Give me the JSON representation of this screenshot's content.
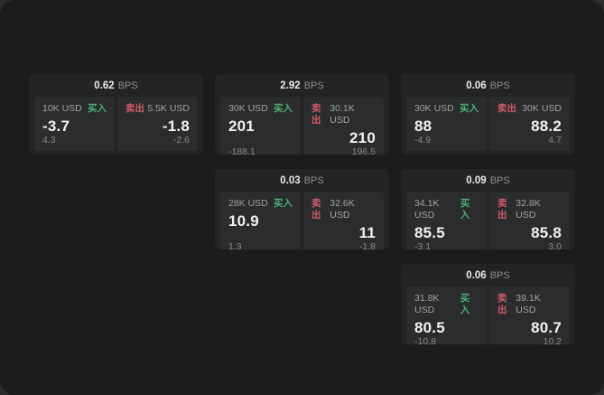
{
  "theme": {
    "page_bg": "#2b2c2d",
    "window_bg": "#1b1c1d",
    "card_bg": "#232426",
    "tile_bg": "#2b2c2e",
    "buy_color": "#4caf71",
    "sell_color": "#d15a68",
    "label_color": "#a3a3a3",
    "muted_color": "#8a8a8a",
    "value_color": "#f2f2f2"
  },
  "labels": {
    "bps_suffix": "BPS",
    "buy": "买入",
    "sell": "卖出"
  },
  "cards": [
    {
      "col": 1,
      "row": 1,
      "bps": "0.62",
      "buy": {
        "amount": "10K USD",
        "price": "-3.7",
        "delta": "4.3"
      },
      "sell": {
        "amount": "5.5K USD",
        "price": "-1.8",
        "delta": "-2.6"
      }
    },
    {
      "col": 2,
      "row": 1,
      "bps": "2.92",
      "buy": {
        "amount": "30K USD",
        "price": "201",
        "delta": "-188.1"
      },
      "sell": {
        "amount": "30.1K USD",
        "price": "210",
        "delta": "196.5"
      }
    },
    {
      "col": 3,
      "row": 1,
      "bps": "0.06",
      "buy": {
        "amount": "30K USD",
        "price": "88",
        "delta": "-4.9"
      },
      "sell": {
        "amount": "30K USD",
        "price": "88.2",
        "delta": "4.7"
      }
    },
    {
      "col": 2,
      "row": 2,
      "bps": "0.03",
      "buy": {
        "amount": "28K USD",
        "price": "10.9",
        "delta": "1.3"
      },
      "sell": {
        "amount": "32.6K USD",
        "price": "11",
        "delta": "-1.8"
      }
    },
    {
      "col": 3,
      "row": 2,
      "bps": "0.09",
      "buy": {
        "amount": "34.1K USD",
        "price": "85.5",
        "delta": "-3.1"
      },
      "sell": {
        "amount": "32.8K USD",
        "price": "85.8",
        "delta": "3.0"
      }
    },
    {
      "col": 3,
      "row": 3,
      "bps": "0.06",
      "buy": {
        "amount": "31.8K USD",
        "price": "80.5",
        "delta": "-10.8"
      },
      "sell": {
        "amount": "39.1K USD",
        "price": "80.7",
        "delta": "10.2"
      }
    }
  ]
}
